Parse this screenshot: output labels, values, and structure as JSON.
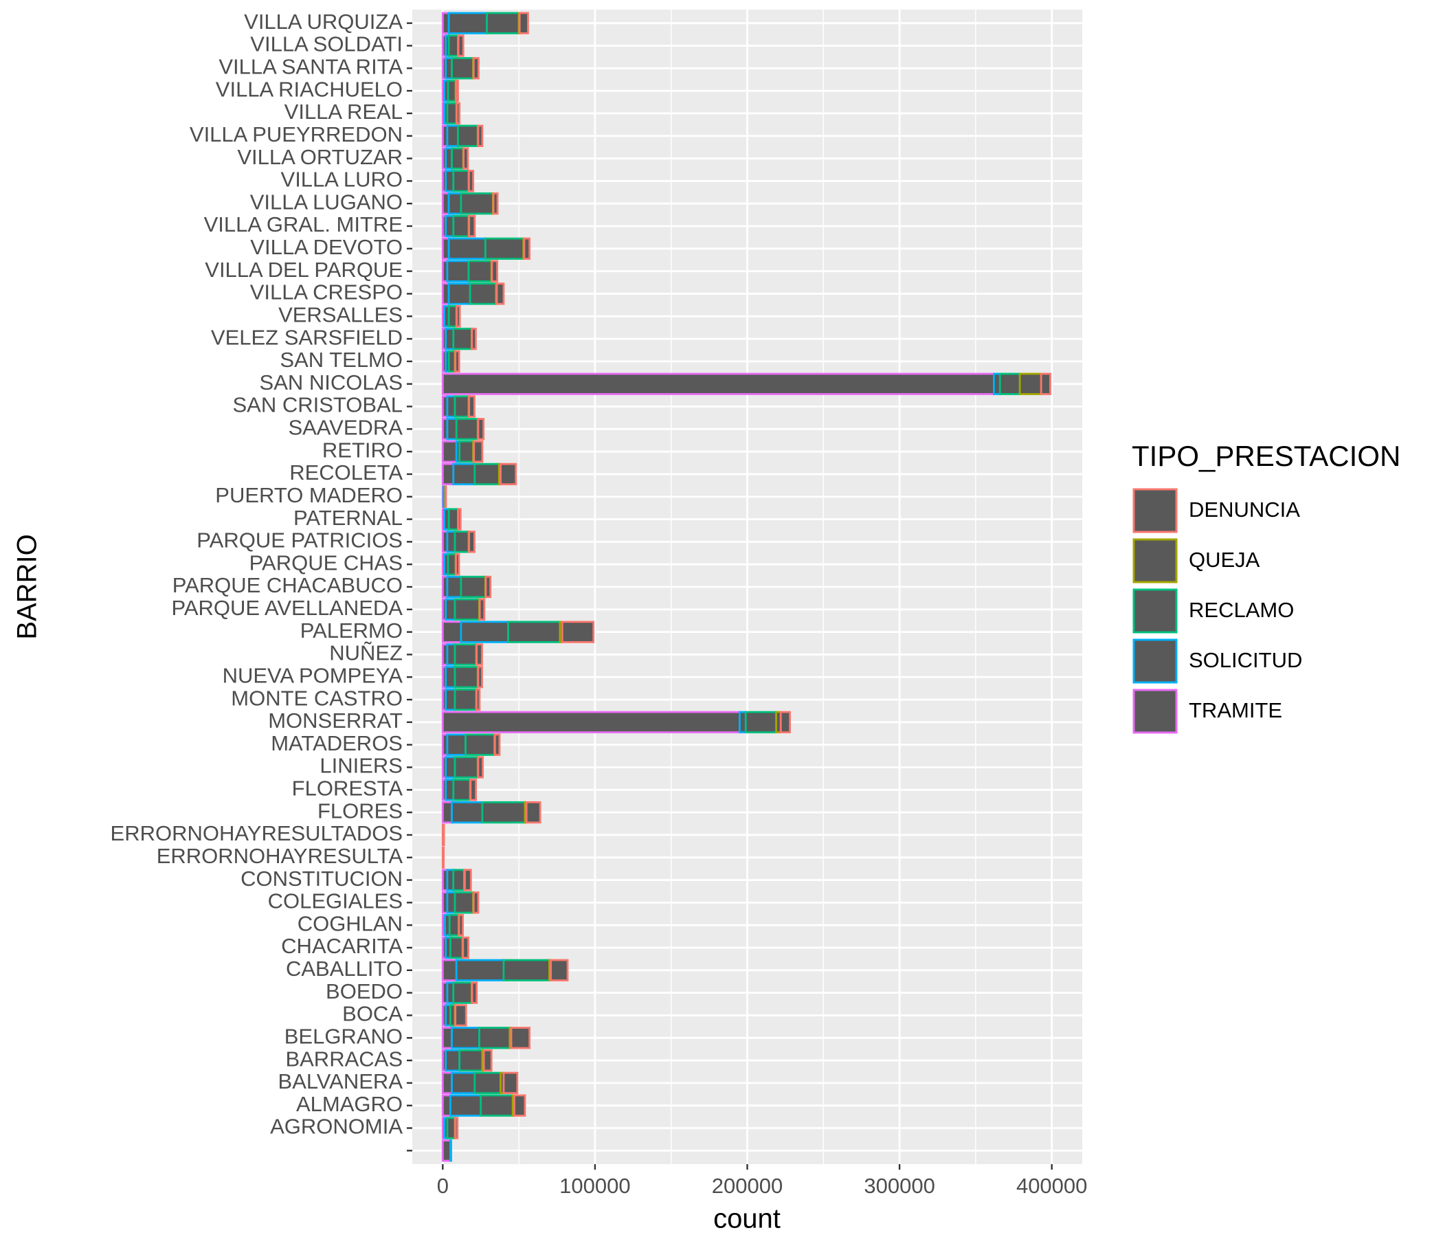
{
  "chart_data": {
    "type": "stacked_barh",
    "ylabel": "BARRIO",
    "xlabel": "count",
    "legend_title": "TIPO_PRESTACION",
    "categories": [
      null,
      "AGRONOMIA",
      "ALMAGRO",
      "BALVANERA",
      "BARRACAS",
      "BELGRANO",
      "BOCA",
      "BOEDO",
      "CABALLITO",
      "CHACARITA",
      "COGHLAN",
      "COLEGIALES",
      "CONSTITUCION",
      "ERRORNOHAYRESULTA",
      "ERRORNOHAYRESULTADOS",
      "FLORES",
      "FLORESTA",
      "LINIERS",
      "MATADEROS",
      "MONSERRAT",
      "MONTE CASTRO",
      "NUEVA POMPEYA",
      "NUÑEZ",
      "PALERMO",
      "PARQUE AVELLANEDA",
      "PARQUE CHACABUCO",
      "PARQUE CHAS",
      "PARQUE PATRICIOS",
      "PATERNAL",
      "PUERTO MADERO",
      "RECOLETA",
      "RETIRO",
      "SAAVEDRA",
      "SAN CRISTOBAL",
      "SAN NICOLAS",
      "SAN TELMO",
      "VELEZ SARSFIELD",
      "VERSALLES",
      "VILLA CRESPO",
      "VILLA DEL PARQUE",
      "VILLA DEVOTO",
      "VILLA GRAL. MITRE",
      "VILLA LUGANO",
      "VILLA LURO",
      "VILLA ORTUZAR",
      "VILLA PUEYRREDON",
      "VILLA REAL",
      "VILLA RIACHUELO",
      "VILLA SANTA RITA",
      "VILLA SOLDATI",
      "VILLA URQUIZA"
    ],
    "fill": "#595959",
    "series": [
      {
        "name": "DENUNCIA",
        "color": "#F8766D",
        "values": [
          0,
          1500,
          7000,
          9000,
          5000,
          12000,
          7000,
          3000,
          11000,
          3500,
          2500,
          3000,
          4000,
          600,
          800,
          9000,
          3500,
          3000,
          3000,
          6000,
          2000,
          2500,
          3500,
          20500,
          3000,
          3000,
          2000,
          3500,
          1500,
          300,
          10000,
          5500,
          3500,
          3500,
          6000,
          2500,
          2500,
          2000,
          4500,
          3500,
          3500,
          3700,
          2700,
          2800,
          2800,
          2700,
          1800,
          1300,
          3200,
          3200,
          5500
        ]
      },
      {
        "name": "QUEJA",
        "color": "#A3A500",
        "values": [
          0,
          200,
          1000,
          2000,
          1000,
          1000,
          300,
          300,
          1000,
          300,
          200,
          300,
          500,
          0,
          0,
          1000,
          300,
          300,
          300,
          3000,
          200,
          300,
          300,
          1500,
          300,
          300,
          200,
          300,
          200,
          100,
          1000,
          500,
          300,
          300,
          14000,
          300,
          200,
          200,
          500,
          300,
          500,
          300,
          300,
          200,
          200,
          300,
          200,
          200,
          300,
          300,
          500
        ]
      },
      {
        "name": "RECLAMO",
        "color": "#00BF7D",
        "values": [
          0,
          5000,
          21000,
          17000,
          15000,
          20000,
          3000,
          12000,
          30000,
          8000,
          6000,
          12000,
          7000,
          0,
          0,
          28000,
          11000,
          15000,
          19000,
          20000,
          14000,
          15000,
          14000,
          34000,
          16000,
          16000,
          5000,
          9000,
          6000,
          700,
          16000,
          9000,
          14000,
          9000,
          13000,
          4000,
          12000,
          5000,
          17000,
          15000,
          25000,
          10000,
          21000,
          10000,
          7500,
          13000,
          6000,
          5000,
          14000,
          6000,
          21000
        ]
      },
      {
        "name": "SOLICITUD",
        "color": "#00B0F6",
        "values": [
          500,
          2000,
          20000,
          15000,
          9000,
          18000,
          3000,
          4000,
          31000,
          3000,
          3000,
          5000,
          4000,
          0,
          0,
          20000,
          5000,
          6000,
          12000,
          4000,
          6000,
          6000,
          5000,
          31000,
          6000,
          9000,
          2500,
          5000,
          3000,
          500,
          14000,
          2000,
          6000,
          5000,
          4000,
          2000,
          5000,
          3000,
          14000,
          14000,
          24000,
          5000,
          8000,
          5000,
          4000,
          7000,
          2000,
          2500,
          4000,
          2000,
          25000
        ]
      },
      {
        "name": "TRAMITE",
        "color": "#E76BF3",
        "values": [
          5000,
          1000,
          5000,
          6000,
          2000,
          6000,
          2000,
          3000,
          9000,
          2000,
          1500,
          3000,
          3000,
          0,
          0,
          6000,
          2000,
          2000,
          3000,
          195000,
          2000,
          2000,
          3000,
          12000,
          2000,
          3000,
          1000,
          3000,
          1000,
          500,
          7000,
          9000,
          3000,
          3000,
          362000,
          2000,
          2000,
          1000,
          4000,
          3000,
          4000,
          2000,
          4000,
          2000,
          2000,
          3000,
          1000,
          1000,
          2000,
          2000,
          4000
        ]
      }
    ],
    "xlim": [
      -20000,
      420000
    ],
    "xticks": [
      0,
      100000,
      200000,
      300000,
      400000
    ],
    "xminor": [
      50000,
      150000,
      250000,
      350000
    ],
    "grid": true,
    "legend": "right"
  }
}
